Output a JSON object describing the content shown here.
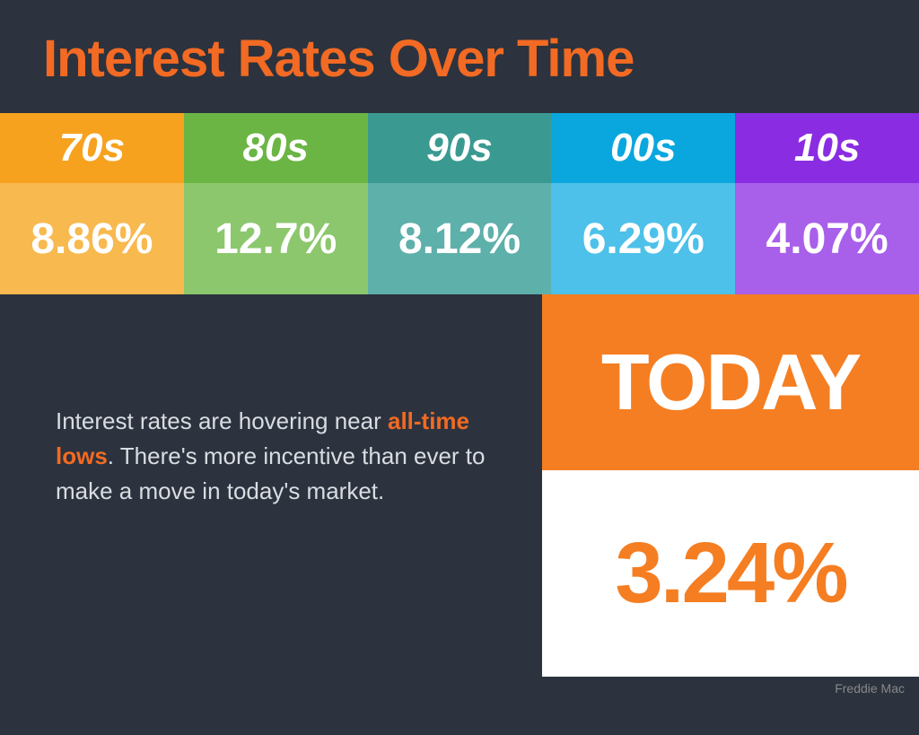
{
  "title": "Interest Rates Over Time",
  "title_color": "#f26a23",
  "title_fontsize": 58,
  "background_color": "#2c333e",
  "decades": [
    {
      "label": "70s",
      "value": "8.86%",
      "label_bg": "#f6a21f",
      "value_bg": "#f8b94f"
    },
    {
      "label": "80s",
      "value": "12.7%",
      "label_bg": "#6bb544",
      "value_bg": "#8cc76d"
    },
    {
      "label": "90s",
      "value": "8.12%",
      "label_bg": "#3a9a92",
      "value_bg": "#5eb0aa"
    },
    {
      "label": "00s",
      "value": "6.29%",
      "label_bg": "#0aa7de",
      "value_bg": "#4dc1e9"
    },
    {
      "label": "10s",
      "value": "4.07%",
      "label_bg": "#8a2de2",
      "value_bg": "#a85fea"
    }
  ],
  "decade_label_color": "#ffffff",
  "decade_value_color": "#ffffff",
  "caption_prefix": "Interest rates are hovering near ",
  "caption_highlight": "all-time lows",
  "caption_suffix": ". There's more incentive than ever to make a move in today's market.",
  "caption_color": "#d9dde2",
  "highlight_color": "#f26a23",
  "today_label": "TODAY",
  "today_label_bg": "#f57e22",
  "today_label_color": "#ffffff",
  "today_label_fontsize": 88,
  "today_value": "3.24%",
  "today_value_bg": "#ffffff",
  "today_value_color": "#f57e22",
  "today_value_fontsize": 96,
  "source": "Freddie Mac"
}
